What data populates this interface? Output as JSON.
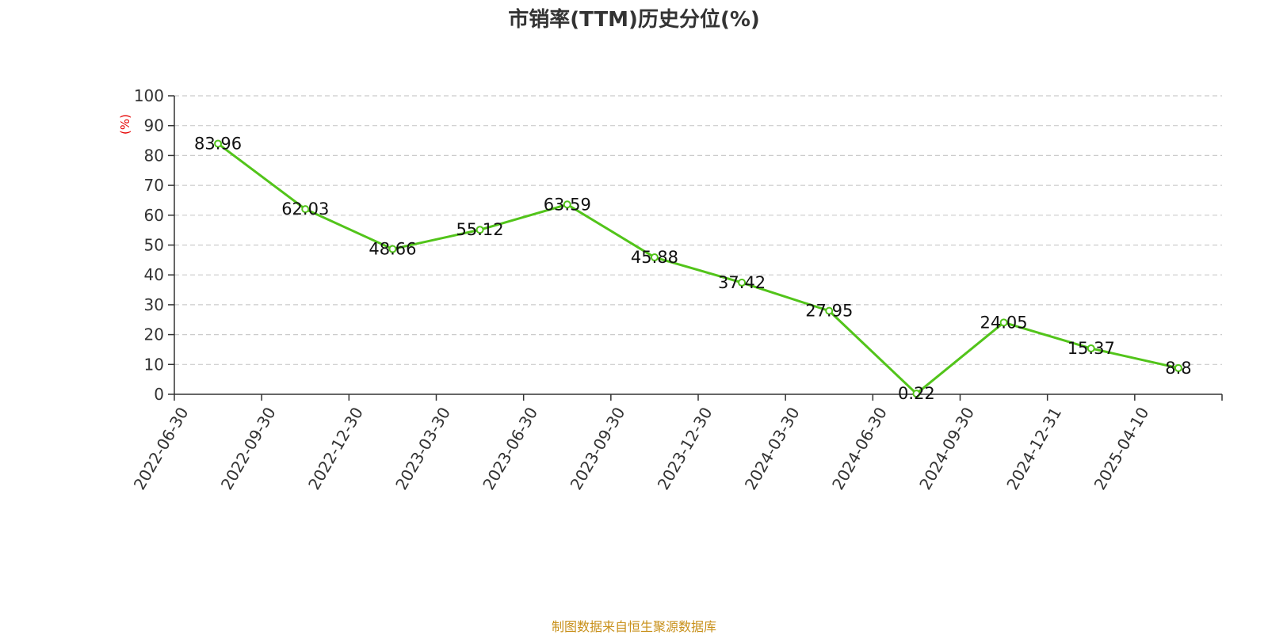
{
  "chart_data": {
    "type": "line",
    "title": "市销率(TTM)历史分位(%)",
    "ylabel": "(%)",
    "xlabel": "",
    "categories": [
      "2022-06-30",
      "2022-09-30",
      "2022-12-30",
      "2023-03-30",
      "2023-06-30",
      "2023-09-30",
      "2023-12-30",
      "2024-03-30",
      "2024-06-30",
      "2024-09-30",
      "2024-12-31",
      "2025-04-10"
    ],
    "values": [
      83.96,
      62.03,
      48.66,
      55.12,
      63.59,
      45.88,
      37.42,
      27.95,
      0.22,
      24.05,
      15.37,
      8.8
    ],
    "value_labels": [
      "83.96",
      "62.03",
      "48.66",
      "55.12",
      "63.59",
      "45.88",
      "37.42",
      "27.95",
      "0.22",
      "24.05",
      "15.37",
      "8.8"
    ],
    "ylim": [
      0,
      100
    ],
    "yticks": [
      0,
      10,
      20,
      30,
      40,
      50,
      60,
      70,
      80,
      90,
      100
    ],
    "grid": true,
    "line_color": "#52c41a",
    "ylabel_color": "#e60000"
  },
  "footer": {
    "source": "制图数据来自恒生聚源数据库"
  }
}
